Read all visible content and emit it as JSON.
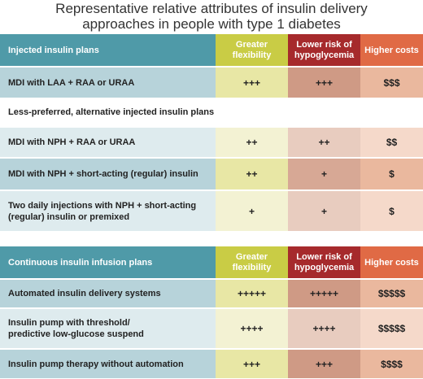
{
  "title": {
    "line1": "Representative relative attributes of insulin delivery",
    "line2": "approaches in people with type 1 diabetes"
  },
  "columns": {
    "flexibility": [
      "Greater",
      "flexibility"
    ],
    "hypoglycemia": [
      "Lower risk of",
      "hypoglycemia"
    ],
    "costs": "Higher costs"
  },
  "injected": {
    "header": "Injected insulin plans",
    "rows": [
      {
        "label": "MDI with LAA + RAA or URAA",
        "flexibility": "+++",
        "hypoglycemia": "+++",
        "costs": "$$$"
      }
    ]
  },
  "alternative": {
    "subheading": "Less-preferred, alternative injected insulin plans",
    "rows": [
      {
        "label": "MDI with NPH + RAA or URAA",
        "flexibility": "++",
        "hypoglycemia": "++",
        "costs": "$$"
      },
      {
        "label": "MDI with NPH + short-acting (regular) insulin",
        "flexibility": "++",
        "hypoglycemia": "+",
        "costs": "$"
      },
      {
        "label_lines": [
          "Two daily injections with NPH + short-acting",
          "(regular) insulin or premixed"
        ],
        "flexibility": "+",
        "hypoglycemia": "+",
        "costs": "$"
      }
    ]
  },
  "continuous": {
    "header": "Continuous insulin infusion plans",
    "rows": [
      {
        "label": "Automated insulin delivery systems",
        "flexibility": "+++++",
        "hypoglycemia": "+++++",
        "costs": "$$$$$"
      },
      {
        "label_lines": [
          "Insulin pump with threshold/",
          "predictive low-glucose suspend"
        ],
        "flexibility": "++++",
        "hypoglycemia": "++++",
        "costs": "$$$$$"
      },
      {
        "label": "Insulin pump therapy without automation",
        "flexibility": "+++",
        "hypoglycemia": "+++",
        "costs": "$$$$"
      }
    ]
  },
  "colors": {
    "teal_header": "#4f9aa8",
    "flexibility_header": "#c9cc45",
    "hypoglycemia_header": "#a62a2c",
    "costs_header": "#e06a45"
  }
}
